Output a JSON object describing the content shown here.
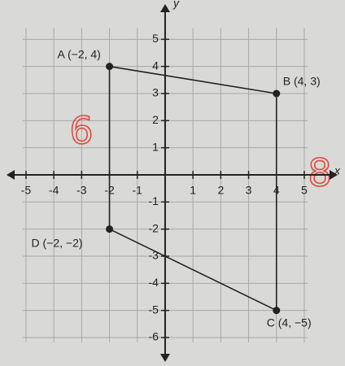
{
  "chart_data": {
    "type": "polygon",
    "x_label": "x",
    "y_label": "y",
    "x": [
      -2,
      4,
      4,
      -2
    ],
    "y": [
      4,
      3,
      -5,
      -2
    ],
    "point_labels": [
      "A (−2, 4)",
      "B (4, 3)",
      "C (4, −5)",
      "D (−2, −2)"
    ],
    "xlim": [
      -5.7,
      6.2
    ],
    "ylim": [
      -6.9,
      6.3
    ],
    "xticks": [
      -5,
      -4,
      -3,
      -2,
      -1,
      1,
      2,
      3,
      4,
      5
    ],
    "yticks": [
      -6,
      -5,
      -4,
      -3,
      -2,
      -1,
      1,
      2,
      3,
      4,
      5
    ],
    "grid": true,
    "color": "#222222",
    "annotations": [
      "6",
      "8"
    ]
  }
}
